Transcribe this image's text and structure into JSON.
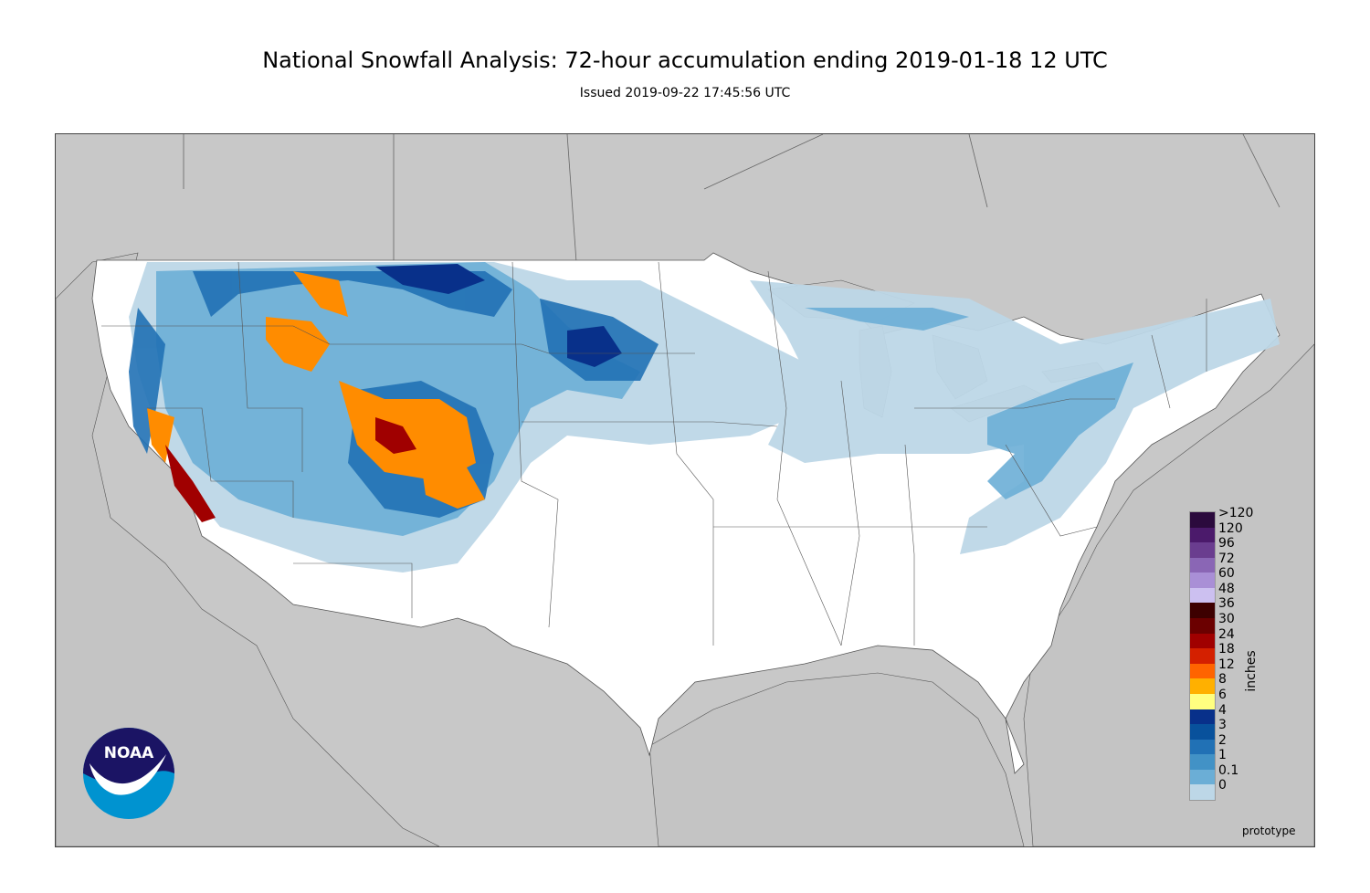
{
  "header": {
    "title": "National Snowfall Analysis: 72-hour accumulation ending 2019-01-18 12 UTC",
    "subtitle": "Issued 2019-09-22 17:45:56 UTC"
  },
  "legend": {
    "unit": "inches",
    "classes": [
      {
        "label": ">120",
        "color": "#2b0a3d"
      },
      {
        "label": "120",
        "color": "#4b1a6b"
      },
      {
        "label": "96",
        "color": "#6a3d8f"
      },
      {
        "label": "72",
        "color": "#8a66b5"
      },
      {
        "label": "60",
        "color": "#a98fd6"
      },
      {
        "label": "48",
        "color": "#ccc0f0"
      },
      {
        "label": "36",
        "color": "#3d0000"
      },
      {
        "label": "30",
        "color": "#6b0000"
      },
      {
        "label": "24",
        "color": "#a00000"
      },
      {
        "label": "18",
        "color": "#d42000"
      },
      {
        "label": "12",
        "color": "#ff6400"
      },
      {
        "label": "8",
        "color": "#ffb000"
      },
      {
        "label": "6",
        "color": "#ffff80"
      },
      {
        "label": "4",
        "color": "#08308a"
      },
      {
        "label": "3",
        "color": "#08519c"
      },
      {
        "label": "2",
        "color": "#2171b5"
      },
      {
        "label": "1",
        "color": "#4292c6"
      },
      {
        "label": "0.1",
        "color": "#6baed6"
      },
      {
        "label": "0",
        "color": "#bdd7e7"
      }
    ],
    "zero_color": "#ffffff",
    "trace_color": "#deebf7"
  },
  "footer": {
    "note": "prototype"
  },
  "logo": {
    "text": "NOAA",
    "colors": {
      "top": "#1b1464",
      "bottom": "#0093d0",
      "wing": "#ffffff"
    }
  },
  "map_colors": {
    "ocean": "#c8c8c8",
    "land_outside": "#c8c8c8",
    "conus": "#ffffff",
    "borders": "#555555"
  }
}
